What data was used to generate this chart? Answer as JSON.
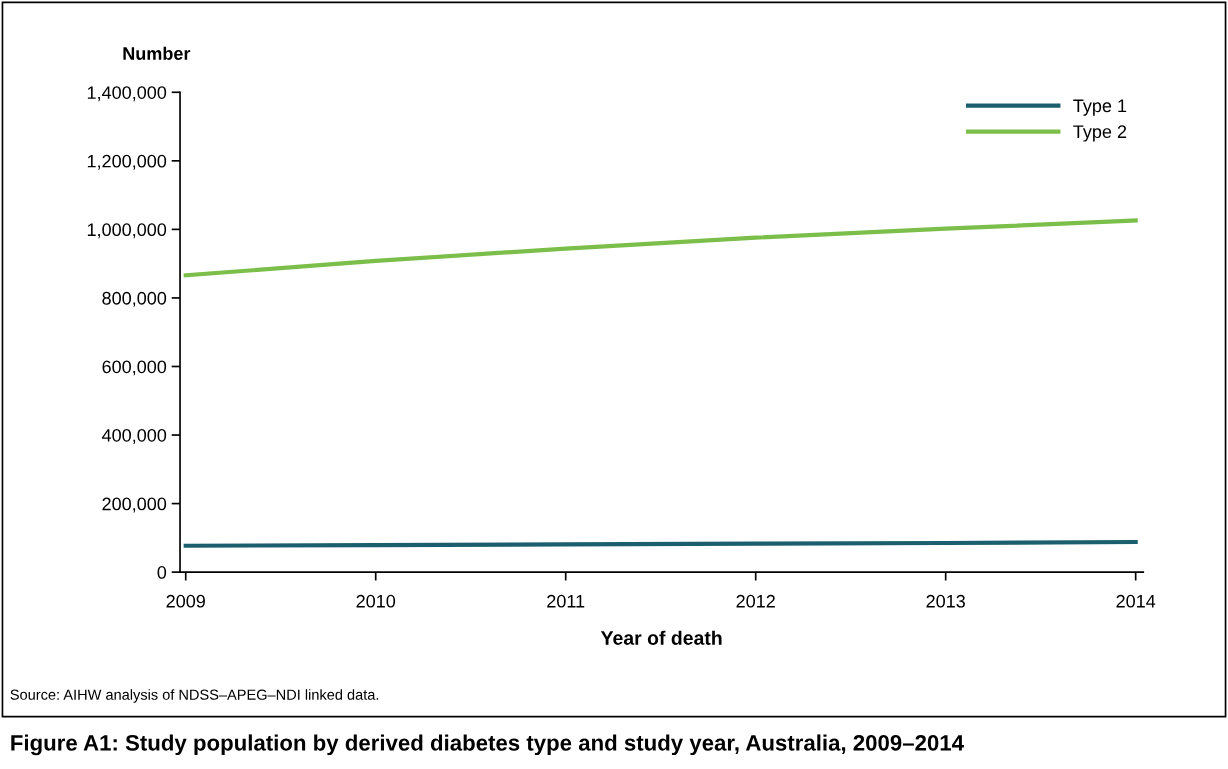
{
  "chart_data": {
    "type": "line",
    "title": "Figure A1: Study population by derived diabetes type and study year, Australia, 2009–2014",
    "xlabel": "Year of death",
    "ylabel": "Number",
    "x": [
      2009,
      2010,
      2011,
      2012,
      2013,
      2014
    ],
    "series": [
      {
        "name": "Type 1",
        "color": "#1b5e6e",
        "values": [
          77000,
          79000,
          81000,
          83000,
          85000,
          88000
        ]
      },
      {
        "name": "Type 2",
        "color": "#7bbf4a",
        "values": [
          866000,
          908000,
          944000,
          976000,
          1002000,
          1026000
        ]
      }
    ],
    "xlim": [
      2008.97,
      2014.04
    ],
    "xticks": [
      2009,
      2010,
      2011,
      2012,
      2013,
      2014
    ],
    "ylim": [
      0,
      1400000
    ],
    "yticks": [
      {
        "value": 0,
        "label": "0"
      },
      {
        "value": 200000,
        "label": "200,000"
      },
      {
        "value": 400000,
        "label": "400,000"
      },
      {
        "value": 600000,
        "label": "600,000"
      },
      {
        "value": 800000,
        "label": "800,000"
      },
      {
        "value": 1000000,
        "label": "1,000,000"
      },
      {
        "value": 1200000,
        "label": "1,200,000"
      },
      {
        "value": 1400000,
        "label": "1,400,000"
      }
    ],
    "grid": false,
    "legend": "top right",
    "marker": "none",
    "line_style": "solid",
    "annotations": [
      "Source: AIHW analysis of NDSS–APEG–NDI linked data."
    ]
  }
}
